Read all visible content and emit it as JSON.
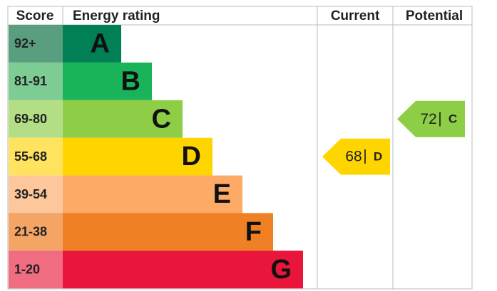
{
  "header": {
    "score": "Score",
    "rating": "Energy rating",
    "current": "Current",
    "potential": "Potential"
  },
  "bands": [
    {
      "score": "92+",
      "letter": "A",
      "color": "#008054",
      "score_color": "#5a9e80"
    },
    {
      "score": "81-91",
      "letter": "B",
      "color": "#19b459",
      "score_color": "#7ccc93"
    },
    {
      "score": "69-80",
      "letter": "C",
      "color": "#8dce46",
      "score_color": "#b4de85"
    },
    {
      "score": "55-68",
      "letter": "D",
      "color": "#ffd500",
      "score_color": "#ffe35f"
    },
    {
      "score": "39-54",
      "letter": "E",
      "color": "#fcaa65",
      "score_color": "#fdc79b"
    },
    {
      "score": "21-38",
      "letter": "F",
      "color": "#ef8023",
      "score_color": "#f4a566"
    },
    {
      "score": "1-20",
      "letter": "G",
      "color": "#e9153b",
      "score_color": "#f06c80"
    }
  ],
  "current": {
    "value": 68,
    "separator": "|",
    "letter": "D"
  },
  "potential": {
    "value": 72,
    "separator": "|",
    "letter": "C"
  }
}
